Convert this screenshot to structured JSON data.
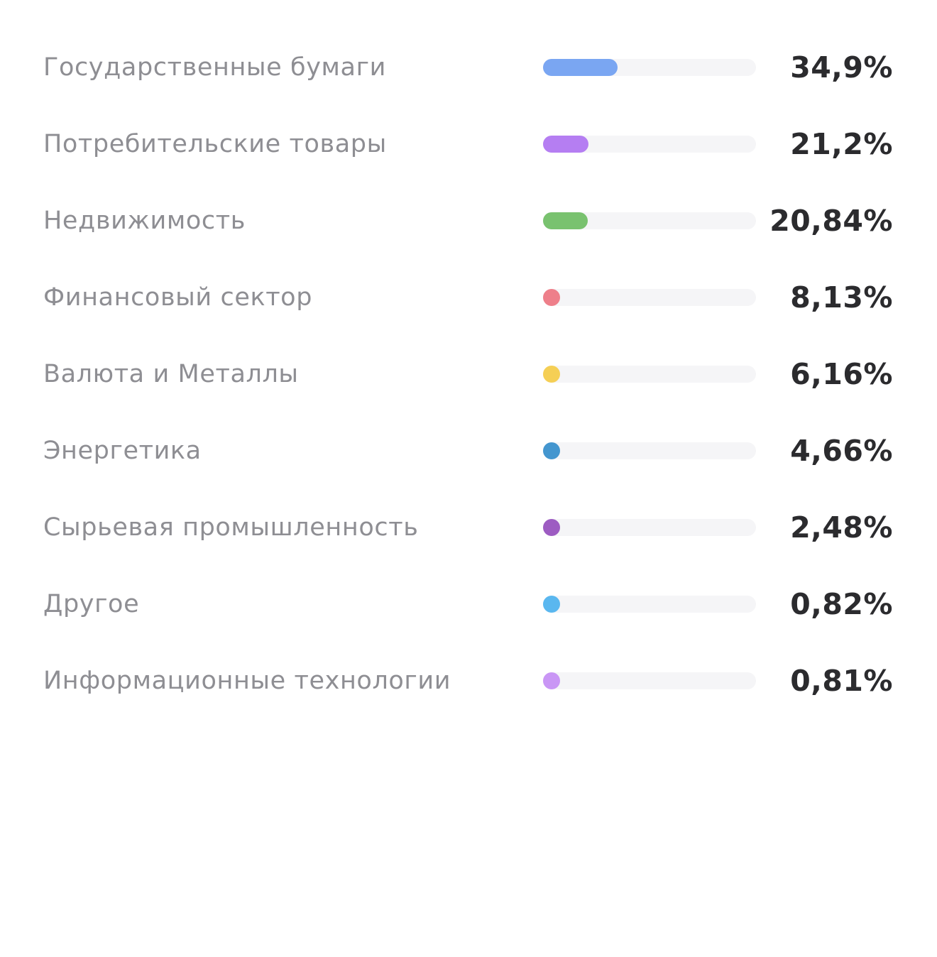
{
  "allocation": {
    "items": [
      {
        "label": "Государственные бумаги",
        "value_text": "34,9%",
        "share": 0.349,
        "color": "#7aa6f2"
      },
      {
        "label": "Потребительские товары",
        "value_text": "21,2%",
        "share": 0.212,
        "color": "#b57ef2"
      },
      {
        "label": "Недвижимость",
        "value_text": "20,84%",
        "share": 0.2084,
        "color": "#79c26f"
      },
      {
        "label": "Финансовый сектор",
        "value_text": "8,13%",
        "share": 0.0813,
        "color": "#ee7f8a"
      },
      {
        "label": "Валюта и Металлы",
        "value_text": "6,16%",
        "share": 0.0616,
        "color": "#f5cf55"
      },
      {
        "label": "Энергетика",
        "value_text": "4,66%",
        "share": 0.0466,
        "color": "#4496cf"
      },
      {
        "label": "Сырьевая промышленность",
        "value_text": "2,48%",
        "share": 0.0248,
        "color": "#9d5cc2"
      },
      {
        "label": "Другое",
        "value_text": "0,82%",
        "share": 0.0082,
        "color": "#5ab7ef"
      },
      {
        "label": "Информационные технологии",
        "value_text": "0,81%",
        "share": 0.0081,
        "color": "#c996f5"
      }
    ]
  }
}
